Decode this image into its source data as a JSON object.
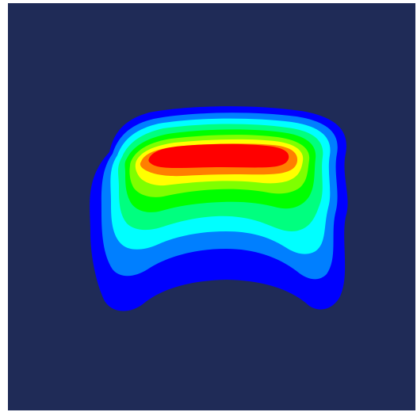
{
  "image": {
    "background_color": "#1f2b57",
    "frame_color": "#ffffff"
  },
  "contour_plot": {
    "colormap": "jet",
    "band_colors": [
      "#0000ff",
      "#007fff",
      "#00ffff",
      "#00ff7f",
      "#00ff00",
      "#7fff00",
      "#ffff00",
      "#ff7f00",
      "#ff0000"
    ],
    "band_count": 9,
    "labels_visible": false
  }
}
